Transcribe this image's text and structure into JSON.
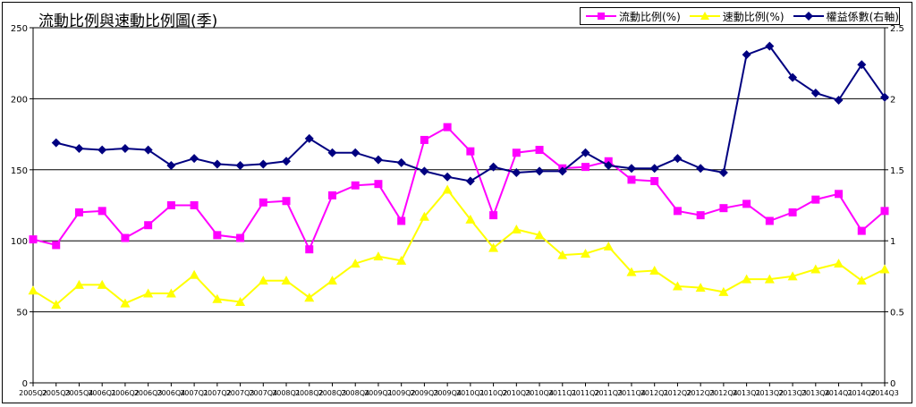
{
  "chart_data": {
    "type": "line",
    "title": "流動比例與速動比例圖(季)",
    "categories": [
      "2005Q2",
      "2005Q3",
      "2005Q4",
      "2006Q1",
      "2006Q2",
      "2006Q3",
      "2006Q4",
      "2007Q1",
      "2007Q2",
      "2007Q3",
      "2007Q4",
      "2008Q1",
      "2008Q2",
      "2008Q3",
      "2008Q4",
      "2009Q1",
      "2009Q2",
      "2009Q3",
      "2009Q4",
      "2010Q1",
      "2010Q2",
      "2010Q3",
      "2010Q4",
      "2011Q1",
      "2011Q2",
      "2011Q3",
      "2011Q4",
      "2012Q1",
      "2012Q2",
      "2012Q3",
      "2012Q4",
      "2013Q1",
      "2013Q2",
      "2013Q3",
      "2013Q4",
      "2014Q1",
      "2014Q2",
      "2014Q3"
    ],
    "left_axis": {
      "ylim": [
        0,
        250
      ],
      "ticks": [
        "0",
        "50",
        "100",
        "150",
        "200",
        "250"
      ]
    },
    "right_axis": {
      "ylim": [
        0,
        2.5
      ],
      "ticks": [
        "0",
        "0.5",
        "1",
        "1.5",
        "2",
        "2.5"
      ]
    },
    "grid": true,
    "legend_position": "top-right",
    "series": [
      {
        "name": "流動比例(%)",
        "axis": "left",
        "color": "#ff00ff",
        "marker": "square",
        "values": [
          101,
          97,
          120,
          121,
          102,
          111,
          125,
          125,
          104,
          102,
          127,
          128,
          94,
          132,
          139,
          140,
          114,
          171,
          180,
          163,
          118,
          162,
          164,
          151,
          152,
          156,
          143,
          142,
          121,
          118,
          123,
          126,
          114,
          120,
          129,
          133,
          107,
          121
        ]
      },
      {
        "name": "速動比例(%)",
        "axis": "left",
        "color": "#ffff00",
        "marker": "triangle",
        "values": [
          65,
          55,
          69,
          69,
          56,
          63,
          63,
          76,
          59,
          57,
          72,
          72,
          60,
          72,
          84,
          89,
          86,
          117,
          136,
          115,
          95,
          108,
          104,
          90,
          91,
          96,
          78,
          79,
          68,
          67,
          64,
          73,
          73,
          75,
          80,
          84,
          72,
          80
        ]
      },
      {
        "name": "權益係數(右軸)",
        "axis": "right",
        "color": "#000080",
        "marker": "diamond",
        "values": [
          null,
          1.69,
          1.65,
          1.64,
          1.65,
          1.64,
          1.53,
          1.58,
          1.54,
          1.53,
          1.54,
          1.56,
          1.72,
          1.62,
          1.62,
          1.57,
          1.55,
          1.49,
          1.45,
          1.42,
          1.52,
          1.48,
          1.49,
          1.49,
          1.62,
          1.53,
          1.51,
          1.51,
          1.58,
          1.51,
          1.48,
          2.31,
          2.37,
          2.15,
          2.04,
          1.99,
          2.24,
          2.01
        ]
      }
    ]
  }
}
